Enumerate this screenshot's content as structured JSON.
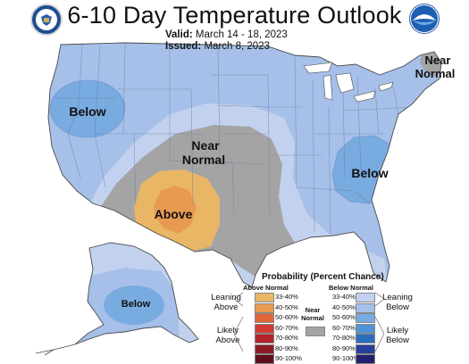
{
  "header": {
    "title": "6-10 Day Temperature Outlook",
    "valid_label": "Valid:",
    "valid_value": "March 14 - 18, 2023",
    "issued_label": "Issued:",
    "issued_value": "March 8, 2023"
  },
  "logos": {
    "left": "doc-seal-logo",
    "right": "noaa-logo"
  },
  "map_labels": {
    "west_below": "Below",
    "central_near_normal_1": "Near",
    "central_near_normal_2": "Normal",
    "southwest_above": "Above",
    "east_below": "Below",
    "northeast_near_1": "Near",
    "northeast_near_2": "Normal",
    "alaska_below": "Below"
  },
  "legend": {
    "title": "Probability (Percent Chance)",
    "above_header": "Above Normal",
    "below_header": "Below Normal",
    "near_header_1": "Near",
    "near_header_2": "Normal",
    "leaning_above": [
      "Leaning",
      "Above"
    ],
    "likely_above": [
      "Likely",
      "Above"
    ],
    "leaning_below": [
      "Leaning",
      "Below"
    ],
    "likely_below": [
      "Likely",
      "Below"
    ],
    "above_bins": [
      "33-40%",
      "40-50%",
      "50-60%",
      "60-70%",
      "70-80%",
      "80-90%",
      "90-100%"
    ],
    "below_bins": [
      "33-40%",
      "40-50%",
      "50-60%",
      "60-70%",
      "70-80%",
      "80-90%",
      "90-100%"
    ],
    "above_colors": [
      "#e9b666",
      "#e89a52",
      "#e0673a",
      "#d23b35",
      "#b5222d",
      "#8c1a26",
      "#5e0f1c"
    ],
    "below_colors": [
      "#c2d1ee",
      "#a6c0ea",
      "#78abe0",
      "#4d95d8",
      "#2a6dbd",
      "#25409a",
      "#231f6e"
    ],
    "near_color": "#a4a4a4"
  }
}
